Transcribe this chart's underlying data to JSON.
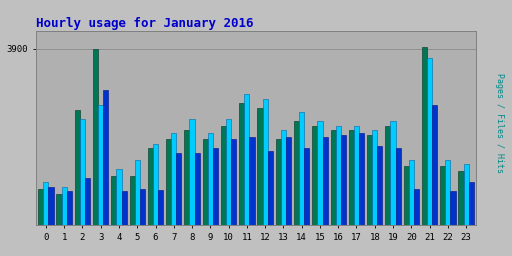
{
  "title": "Hourly usage for January 2016",
  "ylabel": "Pages / Files / Hits",
  "background_color": "#c0c0c0",
  "plot_bg_color": "#b0b0b0",
  "title_color": "#0000cc",
  "ylabel_color": "#008888",
  "grid_color": "#909090",
  "hours": [
    0,
    1,
    2,
    3,
    4,
    5,
    6,
    7,
    8,
    9,
    10,
    11,
    12,
    13,
    14,
    15,
    16,
    17,
    18,
    19,
    20,
    21,
    22,
    23
  ],
  "pages": [
    800,
    700,
    2550,
    3900,
    1100,
    1100,
    1700,
    1900,
    2100,
    1900,
    2200,
    2700,
    2600,
    1900,
    2300,
    2200,
    2100,
    2100,
    2000,
    2200,
    1300,
    3950,
    1300,
    1200
  ],
  "files": [
    950,
    850,
    2350,
    2650,
    1250,
    1450,
    1800,
    2050,
    2350,
    2050,
    2350,
    2900,
    2800,
    2100,
    2500,
    2300,
    2200,
    2200,
    2100,
    2300,
    1450,
    3700,
    1450,
    1350
  ],
  "hits": [
    850,
    750,
    1050,
    3000,
    750,
    800,
    780,
    1600,
    1600,
    1700,
    1900,
    1950,
    1650,
    1950,
    1700,
    1950,
    2000,
    2050,
    1750,
    1700,
    800,
    2650,
    750,
    950
  ],
  "pages_color": "#007755",
  "files_color": "#00ccff",
  "hits_color": "#0033cc",
  "ytick_label": "3900",
  "ytick_value": 3900,
  "ylim": [
    0,
    4300
  ],
  "bar_width": 0.28
}
